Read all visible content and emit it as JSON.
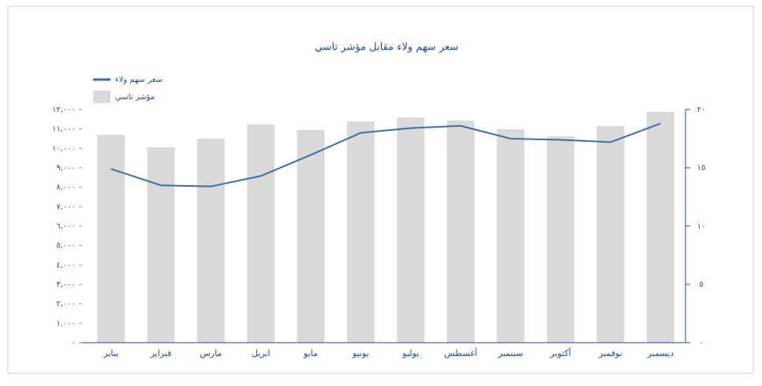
{
  "chart_data": {
    "type": "bar_line",
    "title": "سعر سهم ولاء مقابل مؤشر تاسي",
    "categories": [
      "يناير",
      "فبراير",
      "مارس",
      "ابريل",
      "مايو",
      "يونيو",
      "يوليو",
      "أغسطس",
      "سبتمبر",
      "أكتوبر",
      "نوفمبر",
      "ديسمبر"
    ],
    "series": [
      {
        "name": "سعر سهم ولاء",
        "type": "line",
        "axis": "y2",
        "color": "#3a6fa6",
        "values": [
          14.9,
          13.5,
          13.4,
          14.3,
          16.1,
          18.0,
          18.4,
          18.6,
          17.5,
          17.4,
          17.2,
          18.8
        ]
      },
      {
        "name": "مؤشر تاسي",
        "type": "bar",
        "axis": "y",
        "color": "#d9d9d9",
        "values": [
          10700,
          10050,
          10500,
          11230,
          10950,
          11390,
          11590,
          11430,
          10990,
          10620,
          11150,
          11880
        ]
      }
    ],
    "ylim": [
      0,
      12000
    ],
    "yticks": [
      {
        "value": 0,
        "label": "٠"
      },
      {
        "value": 1000,
        "label": "١,٠٠٠"
      },
      {
        "value": 2000,
        "label": "٢,٠٠٠"
      },
      {
        "value": 3000,
        "label": "٣,٠٠٠"
      },
      {
        "value": 4000,
        "label": "٤,٠٠٠"
      },
      {
        "value": 5000,
        "label": "٥,٠٠٠"
      },
      {
        "value": 6000,
        "label": "٦,٠٠٠"
      },
      {
        "value": 7000,
        "label": "٧,٠٠٠"
      },
      {
        "value": 8000,
        "label": "٨,٠٠٠"
      },
      {
        "value": 9000,
        "label": "٩,٠٠٠"
      },
      {
        "value": 10000,
        "label": "١٠,٠٠٠"
      },
      {
        "value": 11000,
        "label": "١١,٠٠٠"
      },
      {
        "value": 12000,
        "label": "١٢,٠٠٠"
      }
    ],
    "y2lim": [
      0,
      20
    ],
    "y2ticks": [
      {
        "value": 0,
        "label": "٠"
      },
      {
        "value": 5,
        "label": "٥"
      },
      {
        "value": 10,
        "label": "١٠"
      },
      {
        "value": 15,
        "label": "١٥"
      },
      {
        "value": 20,
        "label": "٢٠"
      }
    ],
    "legend": "top-left"
  }
}
